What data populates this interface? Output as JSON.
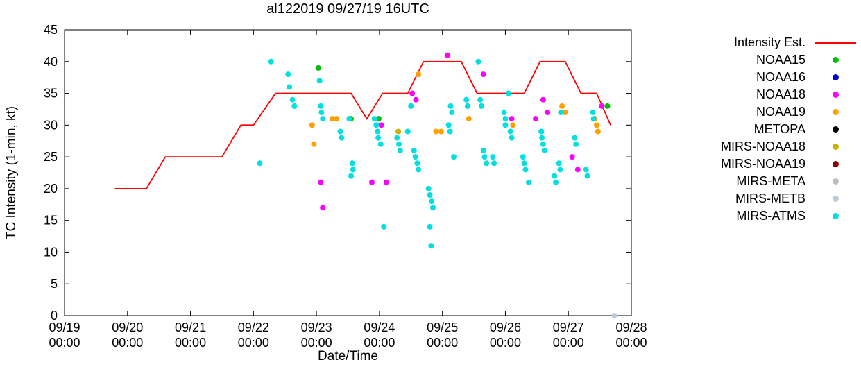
{
  "chart_data": {
    "type": "scatter",
    "title": "al122019 09/27/19 16UTC",
    "xlabel": "Date/Time",
    "ylabel": "TC Intensity (1-min, kt)",
    "x_unit": "days since 09/19 00:00 UTC",
    "x_range": [
      0,
      9
    ],
    "ylim": [
      0,
      45
    ],
    "grid": false,
    "legend_position": "right",
    "yticks": [
      0,
      5,
      10,
      15,
      20,
      25,
      30,
      35,
      40,
      45
    ],
    "xticks": [
      {
        "day": 0,
        "date": "09/19",
        "time": "00:00"
      },
      {
        "day": 1,
        "date": "09/20",
        "time": "00:00"
      },
      {
        "day": 2,
        "date": "09/21",
        "time": "00:00"
      },
      {
        "day": 3,
        "date": "09/22",
        "time": "00:00"
      },
      {
        "day": 4,
        "date": "09/23",
        "time": "00:00"
      },
      {
        "day": 5,
        "date": "09/24",
        "time": "00:00"
      },
      {
        "day": 6,
        "date": "09/25",
        "time": "00:00"
      },
      {
        "day": 7,
        "date": "09/26",
        "time": "00:00"
      },
      {
        "day": 8,
        "date": "09/27",
        "time": "00:00"
      },
      {
        "day": 9,
        "date": "09/28",
        "time": "00:00"
      }
    ],
    "line_series": {
      "name": "Intensity Est.",
      "color": "#ff0000",
      "points": [
        [
          0.8,
          20
        ],
        [
          1.3,
          20
        ],
        [
          1.6,
          25
        ],
        [
          2.5,
          25
        ],
        [
          2.8,
          30
        ],
        [
          3.0,
          30
        ],
        [
          3.35,
          35
        ],
        [
          4.55,
          35
        ],
        [
          4.8,
          31
        ],
        [
          5.05,
          35
        ],
        [
          5.45,
          35
        ],
        [
          5.7,
          40
        ],
        [
          6.3,
          40
        ],
        [
          6.55,
          35
        ],
        [
          7.3,
          35
        ],
        [
          7.55,
          40
        ],
        [
          7.95,
          40
        ],
        [
          8.2,
          35
        ],
        [
          8.45,
          35
        ],
        [
          8.67,
          30
        ]
      ]
    },
    "scatter_series": [
      {
        "name": "NOAA15",
        "color": "#00c000",
        "points": [
          [
            4.03,
            39
          ],
          [
            4.55,
            31
          ],
          [
            4.99,
            31
          ],
          [
            8.62,
            33
          ]
        ]
      },
      {
        "name": "NOAA16",
        "color": "#0000cd",
        "points": []
      },
      {
        "name": "NOAA18",
        "color": "#ff00ff",
        "points": [
          [
            4.07,
            21
          ],
          [
            4.1,
            17
          ],
          [
            4.88,
            21
          ],
          [
            5.03,
            30
          ],
          [
            5.11,
            21
          ],
          [
            5.52,
            35
          ],
          [
            5.58,
            34
          ],
          [
            6.08,
            41
          ],
          [
            6.65,
            38
          ],
          [
            7.1,
            31
          ],
          [
            7.48,
            31
          ],
          [
            7.6,
            34
          ],
          [
            7.67,
            32
          ],
          [
            8.06,
            25
          ],
          [
            8.15,
            23
          ],
          [
            8.53,
            33
          ]
        ]
      },
      {
        "name": "NOAA19",
        "color": "#ffa000",
        "points": [
          [
            3.93,
            30
          ],
          [
            3.96,
            27
          ],
          [
            4.25,
            31
          ],
          [
            4.32,
            31
          ],
          [
            5.62,
            38
          ],
          [
            5.9,
            29
          ],
          [
            5.98,
            29
          ],
          [
            6.42,
            31
          ],
          [
            7.12,
            30
          ],
          [
            7.9,
            33
          ],
          [
            7.95,
            32
          ],
          [
            8.42,
            31
          ],
          [
            8.45,
            30
          ],
          [
            8.47,
            29
          ]
        ]
      },
      {
        "name": "METOPA",
        "color": "#000000",
        "points": []
      },
      {
        "name": "MIRS-NOAA18",
        "color": "#c8b400",
        "points": [
          [
            5.3,
            29
          ]
        ]
      },
      {
        "name": "MIRS-NOAA19",
        "color": "#8b0000",
        "points": []
      },
      {
        "name": "MIRS-META",
        "color": "#bebebe",
        "points": []
      },
      {
        "name": "MIRS-METB",
        "color": "#b9cdd4",
        "points": [
          [
            8.73,
            0
          ]
        ]
      },
      {
        "name": "MIRS-ATMS",
        "color": "#00e0e0",
        "points": [
          [
            3.1,
            24
          ],
          [
            3.28,
            40
          ],
          [
            3.55,
            38
          ],
          [
            3.57,
            36
          ],
          [
            3.62,
            34
          ],
          [
            3.65,
            33
          ],
          [
            4.05,
            37
          ],
          [
            4.07,
            33
          ],
          [
            4.08,
            32
          ],
          [
            4.1,
            31
          ],
          [
            4.38,
            29
          ],
          [
            4.4,
            28
          ],
          [
            4.52,
            31
          ],
          [
            4.55,
            22
          ],
          [
            4.57,
            24
          ],
          [
            4.58,
            23
          ],
          [
            4.92,
            31
          ],
          [
            4.95,
            30
          ],
          [
            4.97,
            29
          ],
          [
            4.98,
            28
          ],
          [
            5.02,
            27
          ],
          [
            5.07,
            14
          ],
          [
            5.28,
            28
          ],
          [
            5.31,
            27
          ],
          [
            5.33,
            26
          ],
          [
            5.45,
            29
          ],
          [
            5.5,
            33
          ],
          [
            5.55,
            26
          ],
          [
            5.57,
            25
          ],
          [
            5.6,
            24
          ],
          [
            5.62,
            23
          ],
          [
            5.78,
            20
          ],
          [
            5.8,
            19
          ],
          [
            5.83,
            18
          ],
          [
            5.85,
            17
          ],
          [
            5.8,
            14
          ],
          [
            5.82,
            11
          ],
          [
            6.1,
            30
          ],
          [
            6.12,
            29
          ],
          [
            6.13,
            33
          ],
          [
            6.15,
            32
          ],
          [
            6.18,
            25
          ],
          [
            6.38,
            34
          ],
          [
            6.4,
            33
          ],
          [
            6.57,
            40
          ],
          [
            6.6,
            34
          ],
          [
            6.62,
            33
          ],
          [
            6.65,
            26
          ],
          [
            6.67,
            25
          ],
          [
            6.7,
            24
          ],
          [
            6.8,
            25
          ],
          [
            6.82,
            24
          ],
          [
            6.98,
            32
          ],
          [
            7.0,
            31
          ],
          [
            7.0,
            30
          ],
          [
            7.05,
            35
          ],
          [
            7.08,
            29
          ],
          [
            7.1,
            28
          ],
          [
            7.28,
            25
          ],
          [
            7.3,
            24
          ],
          [
            7.32,
            23
          ],
          [
            7.37,
            21
          ],
          [
            7.57,
            29
          ],
          [
            7.58,
            28
          ],
          [
            7.6,
            27
          ],
          [
            7.62,
            26
          ],
          [
            7.78,
            22
          ],
          [
            7.8,
            21
          ],
          [
            7.85,
            24
          ],
          [
            7.87,
            23
          ],
          [
            7.88,
            32
          ],
          [
            8.1,
            28
          ],
          [
            8.12,
            27
          ],
          [
            8.28,
            23
          ],
          [
            8.3,
            22
          ],
          [
            8.39,
            32
          ],
          [
            8.4,
            31
          ]
        ]
      }
    ]
  },
  "legend": {
    "entries": [
      {
        "label": "Intensity Est.",
        "marker": "line",
        "color": "#ff0000"
      },
      {
        "label": "NOAA15",
        "marker": "dot",
        "color": "#00c000"
      },
      {
        "label": "NOAA16",
        "marker": "dot",
        "color": "#0000cd"
      },
      {
        "label": "NOAA18",
        "marker": "dot",
        "color": "#ff00ff"
      },
      {
        "label": "NOAA19",
        "marker": "dot",
        "color": "#ffa000"
      },
      {
        "label": "METOPA",
        "marker": "dot",
        "color": "#000000"
      },
      {
        "label": "MIRS-NOAA18",
        "marker": "dot",
        "color": "#c8b400"
      },
      {
        "label": "MIRS-NOAA19",
        "marker": "dot",
        "color": "#8b0000"
      },
      {
        "label": "MIRS-META",
        "marker": "dot",
        "color": "#bebebe"
      },
      {
        "label": "MIRS-METB",
        "marker": "dot",
        "color": "#b9cdd4"
      },
      {
        "label": "MIRS-ATMS",
        "marker": "dot",
        "color": "#00e0e0"
      }
    ]
  }
}
